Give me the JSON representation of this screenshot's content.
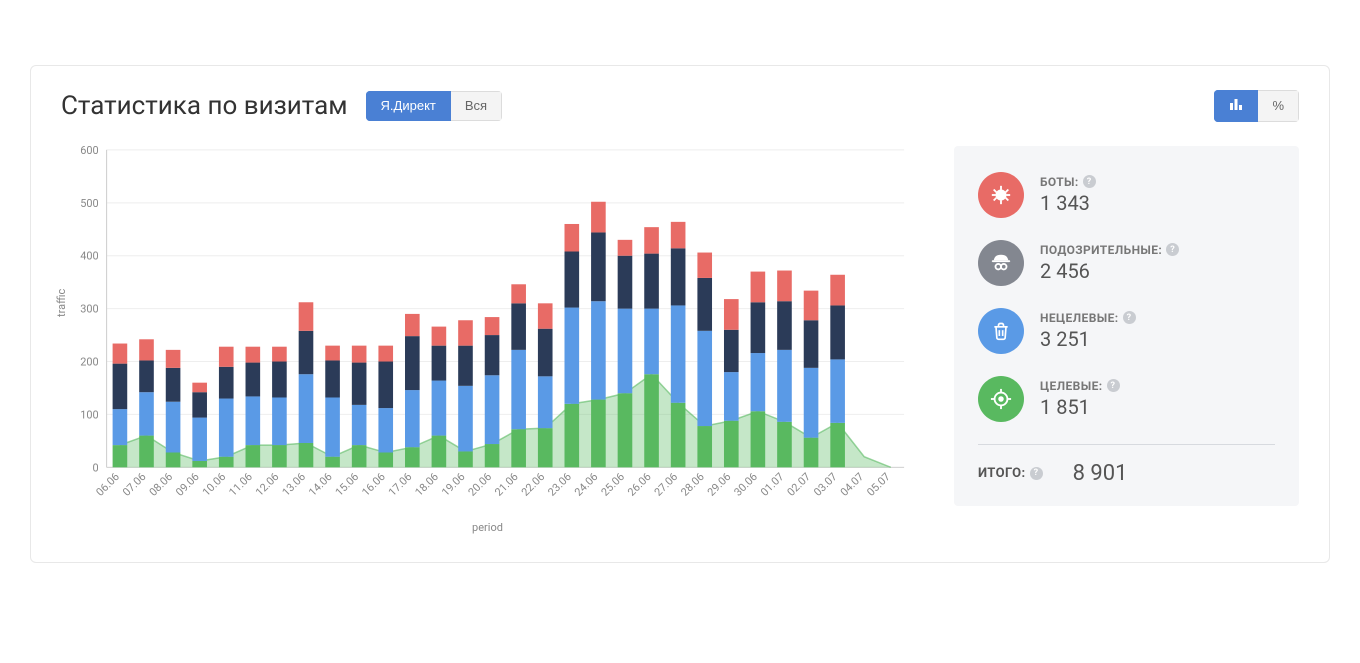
{
  "header": {
    "title": "Статистика по визитам",
    "filter_tabs": [
      {
        "label": "Я.Директ",
        "active": true
      },
      {
        "label": "Вся",
        "active": false
      }
    ],
    "view_tabs": [
      {
        "icon": "bar-chart-icon",
        "active": true
      },
      {
        "label": "%",
        "active": false
      }
    ]
  },
  "chart": {
    "type": "stacked-bar-with-area",
    "x_axis_title": "period",
    "y_axis_title": "traffic",
    "ylim": [
      0,
      600
    ],
    "ytick_step": 100,
    "grid_color": "#eeeeee",
    "axis_color": "#cccccc",
    "background_color": "#ffffff",
    "tick_fontsize": 11,
    "tick_color": "#888888",
    "bar_width_ratio": 0.55,
    "colors": {
      "targeted": "#59b960",
      "nontargeted": "#5a9ae6",
      "suspicious": "#2b3b58",
      "bots": "#e86b66",
      "area_fill": "rgba(89,185,96,0.35)",
      "area_stroke": "#59b960"
    },
    "categories": [
      "06.06",
      "07.06",
      "08.06",
      "09.06",
      "10.06",
      "11.06",
      "12.06",
      "13.06",
      "14.06",
      "15.06",
      "16.06",
      "17.06",
      "18.06",
      "19.06",
      "20.06",
      "21.06",
      "22.06",
      "23.06",
      "24.06",
      "25.06",
      "26.06",
      "27.06",
      "28.06",
      "29.06",
      "30.06",
      "01.07",
      "02.07",
      "03.07",
      "04.07",
      "05.07"
    ],
    "series": {
      "targeted": [
        42,
        60,
        28,
        12,
        20,
        42,
        42,
        46,
        20,
        42,
        28,
        38,
        60,
        30,
        44,
        72,
        74,
        120,
        128,
        140,
        176,
        122,
        78,
        88,
        106,
        86,
        56,
        84,
        0,
        0
      ],
      "nontargeted": [
        68,
        82,
        96,
        82,
        110,
        92,
        90,
        130,
        112,
        76,
        84,
        108,
        104,
        124,
        130,
        150,
        98,
        182,
        186,
        160,
        124,
        184,
        180,
        92,
        110,
        136,
        132,
        120,
        0,
        0
      ],
      "suspicious": [
        86,
        60,
        64,
        48,
        60,
        64,
        68,
        82,
        70,
        80,
        88,
        102,
        66,
        76,
        76,
        88,
        90,
        106,
        130,
        100,
        104,
        108,
        100,
        80,
        96,
        92,
        90,
        102,
        0,
        0
      ],
      "bots": [
        38,
        40,
        34,
        18,
        38,
        30,
        28,
        54,
        28,
        32,
        30,
        42,
        36,
        48,
        34,
        36,
        48,
        52,
        58,
        30,
        50,
        50,
        48,
        58,
        58,
        58,
        56,
        58,
        0,
        0
      ]
    },
    "area_series": [
      42,
      60,
      28,
      12,
      20,
      42,
      42,
      46,
      20,
      42,
      28,
      38,
      60,
      30,
      44,
      72,
      74,
      120,
      128,
      140,
      176,
      122,
      78,
      88,
      106,
      86,
      56,
      84,
      20,
      0
    ]
  },
  "stats": {
    "items": [
      {
        "key": "bots",
        "label": "БОТЫ:",
        "value": "1 343",
        "icon_bg": "#e86b66",
        "icon": "bug-icon"
      },
      {
        "key": "suspicious",
        "label": "ПОДОЗРИТЕЛЬНЫЕ:",
        "value": "2 456",
        "icon_bg": "#838790",
        "icon": "spy-icon"
      },
      {
        "key": "nontargeted",
        "label": "НЕЦЕЛЕВЫЕ:",
        "value": "3 251",
        "icon_bg": "#5a9ae6",
        "icon": "trash-icon"
      },
      {
        "key": "targeted",
        "label": "ЦЕЛЕВЫЕ:",
        "value": "1 851",
        "icon_bg": "#59b960",
        "icon": "target-icon"
      }
    ],
    "total_label": "ИТОГО:",
    "total_value": "8 901"
  }
}
